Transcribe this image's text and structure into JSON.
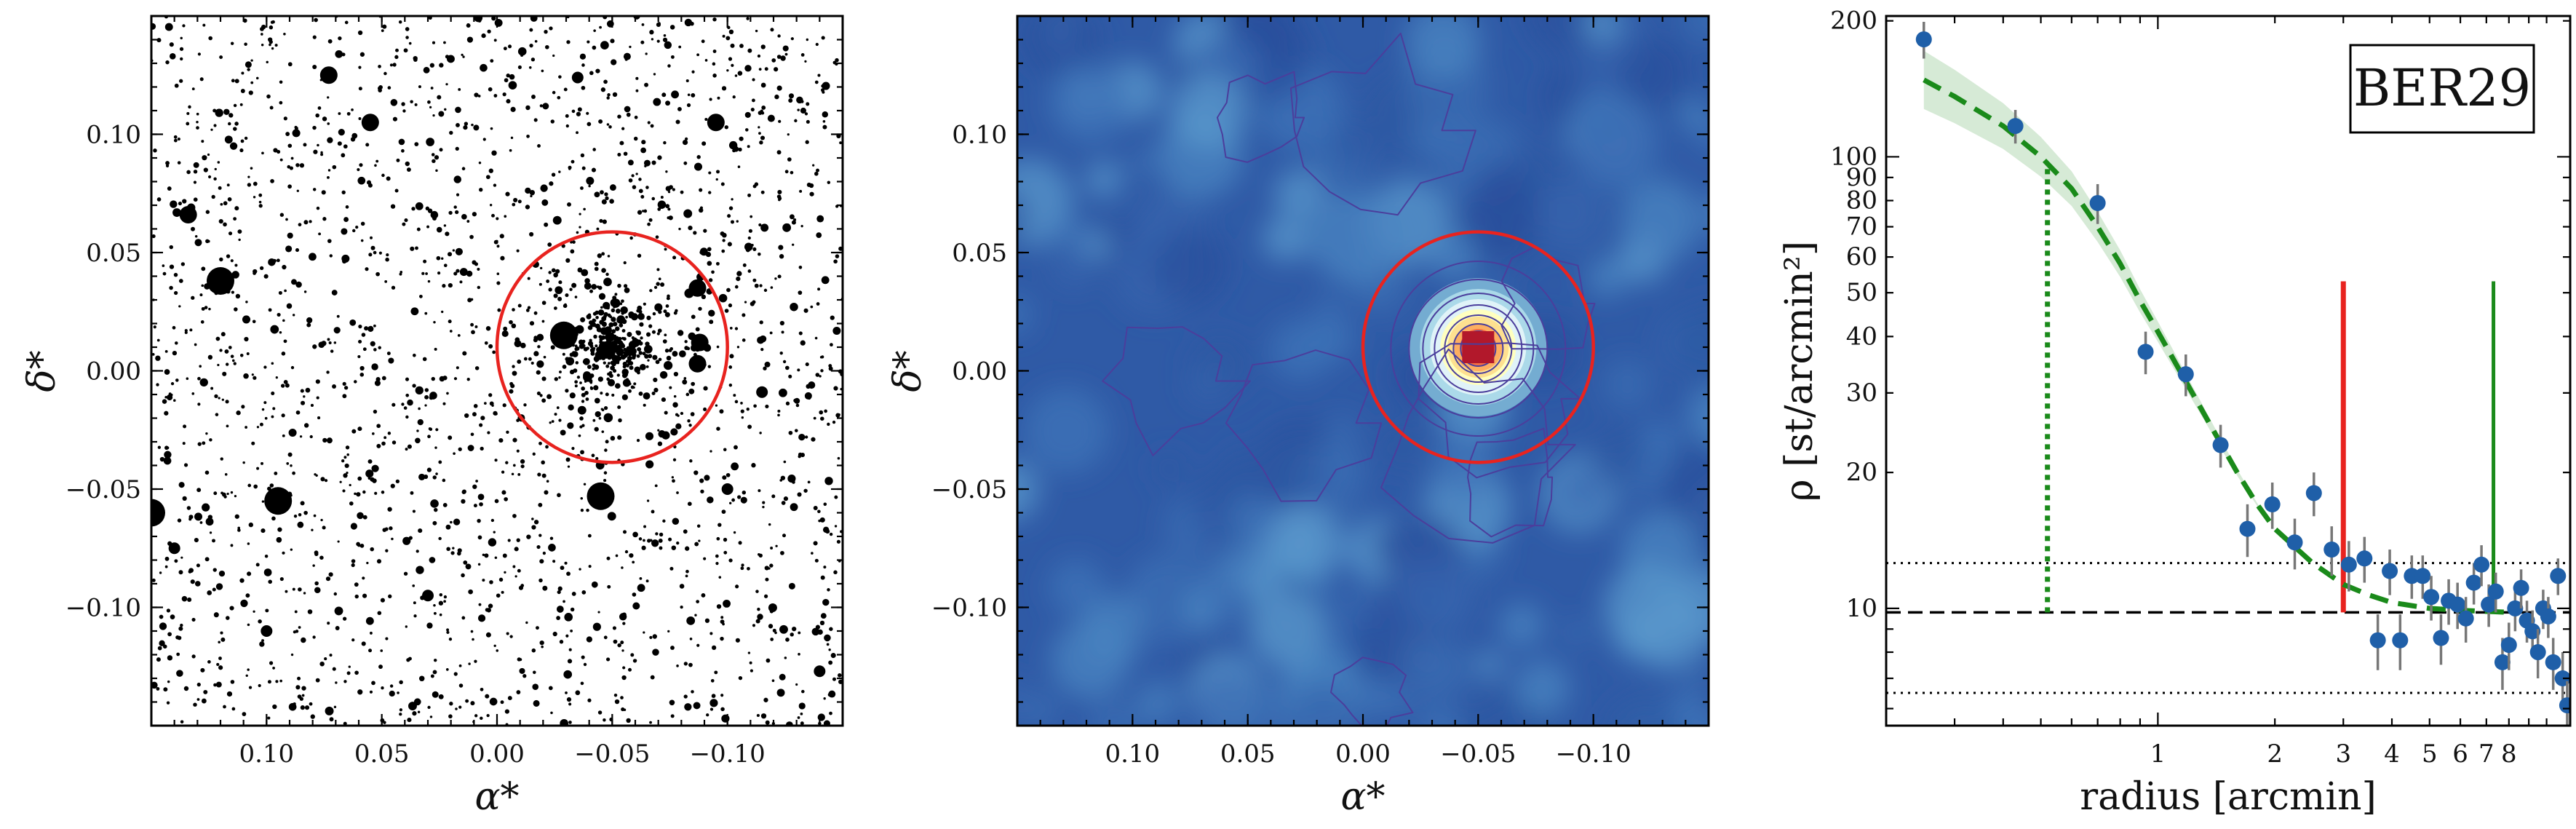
{
  "chart_data": [
    {
      "type": "scatter",
      "title": "",
      "xlabel": "α*",
      "ylabel": "δ*",
      "xlim": [
        0.15,
        -0.15
      ],
      "ylim": [
        -0.15,
        0.15
      ],
      "x_reversed": true,
      "xticks": [
        0.1,
        0.05,
        0.0,
        -0.05,
        -0.1
      ],
      "xtick_labels": [
        "0.10",
        "0.05",
        "0.00",
        "−0.05",
        "−0.10"
      ],
      "yticks": [
        0.1,
        0.05,
        0.0,
        -0.05,
        -0.1
      ],
      "ytick_labels": [
        "0.10",
        "0.05",
        "0.00",
        "−0.05",
        "−0.10"
      ],
      "point_color": "#000000",
      "bright_stars": [
        {
          "x": 0.12,
          "y": 0.038,
          "mag": "bright"
        },
        {
          "x": 0.095,
          "y": -0.055,
          "mag": "bright"
        },
        {
          "x": 0.134,
          "y": 0.066,
          "mag": "medium"
        },
        {
          "x": 0.055,
          "y": 0.105,
          "mag": "medium"
        },
        {
          "x": 0.15,
          "y": -0.06,
          "mag": "bright"
        },
        {
          "x": -0.029,
          "y": 0.015,
          "mag": "bright"
        },
        {
          "x": -0.045,
          "y": -0.053,
          "mag": "bright"
        },
        {
          "x": -0.095,
          "y": 0.105,
          "mag": "medium"
        },
        {
          "x": -0.088,
          "y": 0.012,
          "mag": "medium"
        },
        {
          "x": -0.087,
          "y": 0.035,
          "mag": "medium"
        },
        {
          "x": -0.087,
          "y": 0.003,
          "mag": "medium"
        },
        {
          "x": 0.073,
          "y": 0.125,
          "mag": "medium"
        },
        {
          "x": -0.035,
          "y": 0.124,
          "mag": "small"
        },
        {
          "x": 0.03,
          "y": -0.095,
          "mag": "small"
        },
        {
          "x": 0.1,
          "y": -0.11,
          "mag": "small"
        },
        {
          "x": 0.14,
          "y": -0.075,
          "mag": "small"
        },
        {
          "x": -0.1,
          "y": -0.05,
          "mag": "small"
        },
        {
          "x": -0.115,
          "y": -0.009,
          "mag": "small"
        },
        {
          "x": -0.14,
          "y": -0.127,
          "mag": "small"
        }
      ],
      "cluster_center": {
        "x": -0.05,
        "y": 0.01
      },
      "cluster_radius": 0.05,
      "circle_color": "#e8231f"
    },
    {
      "type": "heatmap",
      "title": "",
      "xlabel": "α*",
      "ylabel": "δ*",
      "xlim": [
        0.15,
        -0.15
      ],
      "ylim": [
        -0.15,
        0.15
      ],
      "x_reversed": true,
      "xticks": [
        0.1,
        0.05,
        0.0,
        -0.05,
        -0.1
      ],
      "xtick_labels": [
        "0.10",
        "0.05",
        "0.00",
        "−0.05",
        "−0.10"
      ],
      "yticks": [
        0.1,
        0.05,
        0.0,
        -0.05,
        -0.1
      ],
      "ytick_labels": [
        "0.10",
        "0.05",
        "0.00",
        "−0.05",
        "−0.10"
      ],
      "colormap": "RdYlBu_r",
      "peak": {
        "x": -0.05,
        "y": 0.01
      },
      "cluster_radius": 0.05,
      "circle_color": "#e8231f",
      "contour_color": "#4b3e9c"
    },
    {
      "type": "scatter",
      "title": "",
      "xlabel": "radius [arcmin]",
      "ylabel": "ρ [st/arcmin²]",
      "xscale": "log",
      "yscale": "log",
      "xlim": [
        0.2,
        11.5
      ],
      "ylim": [
        5.5,
        205
      ],
      "xticks": [
        1,
        2,
        3,
        4,
        5,
        6,
        7,
        8
      ],
      "xtick_labels": [
        "1",
        "2",
        "3",
        "4",
        "5",
        "6",
        "7",
        "8"
      ],
      "yticks": [
        10,
        20,
        30,
        40,
        50,
        60,
        70,
        80,
        90,
        100,
        200
      ],
      "ytick_labels": [
        "10",
        "20",
        "30",
        "40",
        "50",
        "60",
        "70",
        "80",
        "90",
        "100",
        "200"
      ],
      "legend_text": "BER29",
      "legend_position": "top-right",
      "point_color": "#1f5fa8",
      "fit_color": "#1a8a1a",
      "points": [
        {
          "x": 0.25,
          "y": 182,
          "err": 17
        },
        {
          "x": 0.43,
          "y": 117,
          "err": 10
        },
        {
          "x": 0.7,
          "y": 79,
          "err": 8
        },
        {
          "x": 0.93,
          "y": 37,
          "err": 4
        },
        {
          "x": 1.18,
          "y": 33,
          "err": 3.5
        },
        {
          "x": 1.45,
          "y": 23,
          "err": 2.5
        },
        {
          "x": 1.7,
          "y": 15,
          "err": 2
        },
        {
          "x": 1.97,
          "y": 17,
          "err": 2
        },
        {
          "x": 2.25,
          "y": 14,
          "err": 1.8
        },
        {
          "x": 2.52,
          "y": 18,
          "err": 2
        },
        {
          "x": 2.8,
          "y": 13.5,
          "err": 1.7
        },
        {
          "x": 3.1,
          "y": 12.5,
          "err": 1.6
        },
        {
          "x": 3.4,
          "y": 12.9,
          "err": 1.5
        },
        {
          "x": 3.68,
          "y": 8.5,
          "err": 1.2
        },
        {
          "x": 3.95,
          "y": 12.1,
          "err": 1.4
        },
        {
          "x": 4.2,
          "y": 8.5,
          "err": 1.2
        },
        {
          "x": 4.5,
          "y": 11.8,
          "err": 1.3
        },
        {
          "x": 4.8,
          "y": 11.8,
          "err": 1.3
        },
        {
          "x": 5.05,
          "y": 10.6,
          "err": 1.2
        },
        {
          "x": 5.35,
          "y": 8.6,
          "err": 1.1
        },
        {
          "x": 5.6,
          "y": 10.4,
          "err": 1.2
        },
        {
          "x": 5.9,
          "y": 10.2,
          "err": 1.2
        },
        {
          "x": 6.2,
          "y": 9.5,
          "err": 1.1
        },
        {
          "x": 6.5,
          "y": 11.4,
          "err": 1.2
        },
        {
          "x": 6.8,
          "y": 12.5,
          "err": 1.3
        },
        {
          "x": 7.1,
          "y": 10.2,
          "err": 1.1
        },
        {
          "x": 7.4,
          "y": 10.9,
          "err": 1.1
        },
        {
          "x": 7.7,
          "y": 7.6,
          "err": 1.0
        },
        {
          "x": 8.0,
          "y": 8.3,
          "err": 1.0
        },
        {
          "x": 8.3,
          "y": 10.0,
          "err": 1.1
        },
        {
          "x": 8.6,
          "y": 11.1,
          "err": 1.1
        },
        {
          "x": 8.9,
          "y": 9.4,
          "err": 1.0
        },
        {
          "x": 9.2,
          "y": 8.9,
          "err": 1.0
        },
        {
          "x": 9.5,
          "y": 8.0,
          "err": 1.0
        },
        {
          "x": 9.8,
          "y": 10.0,
          "err": 1.0
        },
        {
          "x": 10.1,
          "y": 9.6,
          "err": 1.0
        },
        {
          "x": 10.4,
          "y": 7.6,
          "err": 1.0
        },
        {
          "x": 10.7,
          "y": 11.8,
          "err": 1.1
        },
        {
          "x": 11.0,
          "y": 7.0,
          "err": 1.0
        },
        {
          "x": 11.3,
          "y": 6.1,
          "err": 0.8
        }
      ],
      "king_fit": {
        "background": 9.8,
        "background_upper": 12.6,
        "background_lower": 6.5,
        "x": [
          0.25,
          0.3,
          0.4,
          0.5,
          0.6,
          0.7,
          0.8,
          0.9,
          1.0,
          1.2,
          1.4,
          1.6,
          1.8,
          2.0,
          2.5,
          3.0,
          3.5,
          4.0,
          5.0,
          6.0,
          7.0,
          8.0
        ],
        "y": [
          148,
          136,
          117,
          100,
          85,
          70,
          58,
          48,
          41,
          31,
          24.5,
          20,
          17,
          15,
          12.6,
          11.3,
          10.7,
          10.3,
          10.0,
          9.9,
          9.85,
          9.8
        ]
      },
      "vertical_lines": [
        {
          "x": 0.52,
          "style": "dotted",
          "color": "#1a8a1a",
          "y_top": 97
        },
        {
          "x": 3.0,
          "style": "solid",
          "color": "#e8231f",
          "y_top": 53
        },
        {
          "x": 7.3,
          "style": "solid",
          "color": "#1a8a1a",
          "y_top": 53
        }
      ]
    }
  ]
}
